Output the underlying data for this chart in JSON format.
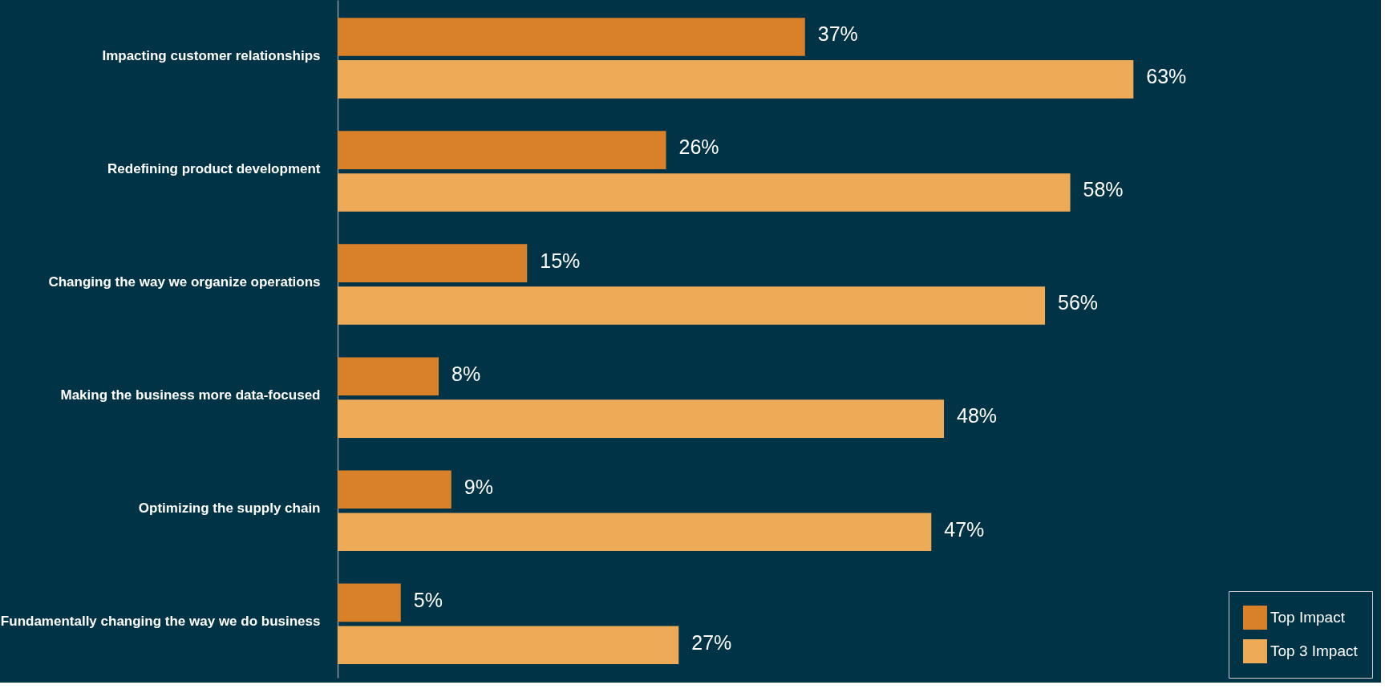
{
  "chart_data": {
    "type": "bar",
    "orientation": "horizontal",
    "categories": [
      "Impacting customer relationships",
      "Redefining product development",
      "Changing the way we organize operations",
      "Making the business more data-focused",
      "Optimizing the supply chain",
      "Fundamentally changing the way we do business"
    ],
    "series": [
      {
        "name": "Top Impact",
        "color": "#d98129",
        "values": [
          37,
          26,
          15,
          8,
          9,
          5
        ],
        "value_labels": [
          "37%",
          "26%",
          "15%",
          "8%",
          "9%",
          "5%"
        ]
      },
      {
        "name": "Top 3 Impact",
        "color": "#eeab57",
        "values": [
          63,
          58,
          56,
          48,
          47,
          27
        ],
        "value_labels": [
          "63%",
          "58%",
          "56%",
          "48%",
          "47%",
          "27%"
        ]
      }
    ],
    "tick_labels": "y",
    "legend": "bottom right"
  }
}
